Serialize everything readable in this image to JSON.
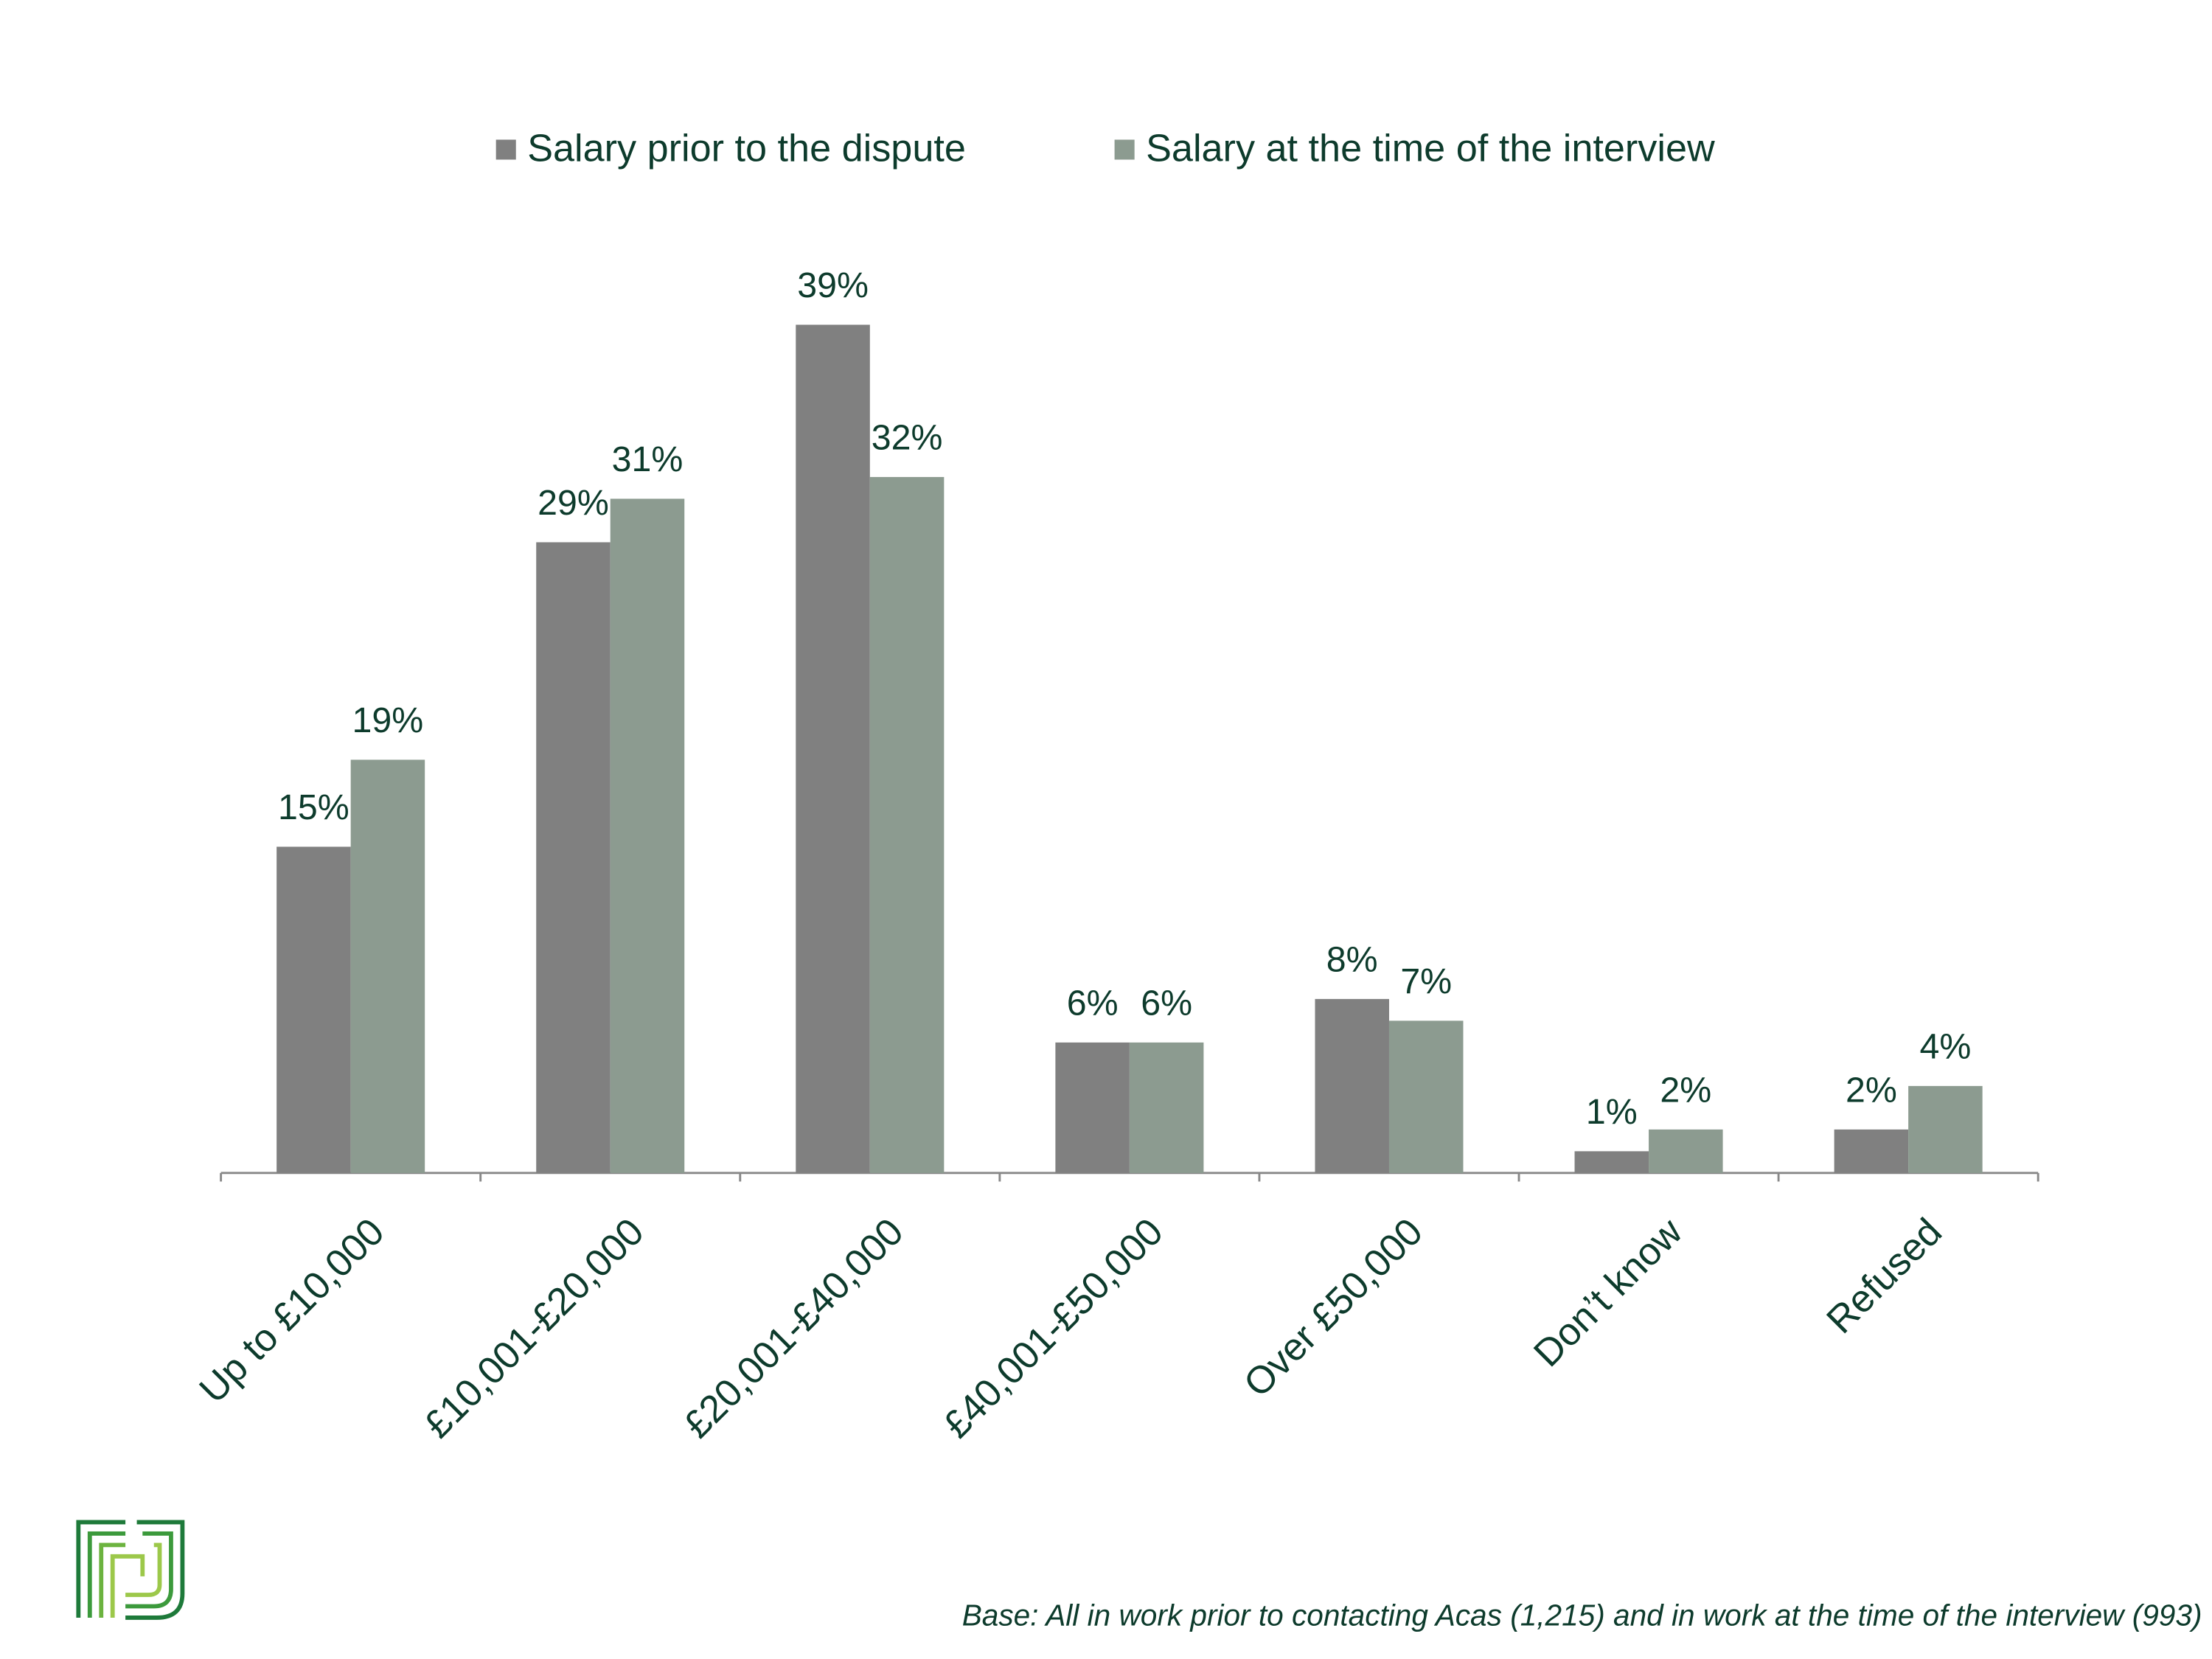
{
  "chart_data": {
    "type": "bar",
    "categories": [
      "Up to £10,000",
      "£10,001-£20,000",
      "£20,001-£40,000",
      "£40,001-£50,000",
      "Over £50,000",
      "Don’t know",
      "Refused"
    ],
    "series": [
      {
        "name": "Salary prior to the dispute",
        "color": "#808080",
        "values": [
          15,
          29,
          39,
          6,
          8,
          1,
          2
        ],
        "value_labels": [
          "15%",
          "29%",
          "39%",
          "6%",
          "8%",
          "1%",
          "2%"
        ]
      },
      {
        "name": "Salary at the time of the interview",
        "color": "#8c9b90",
        "values": [
          19,
          31,
          32,
          6,
          7,
          2,
          4
        ],
        "value_labels": [
          "19%",
          "31%",
          "32%",
          "6%",
          "7%",
          "2%",
          "4%"
        ]
      }
    ],
    "legend": "top",
    "footnote": "Base: All in work prior to contacting Acas (1,215) and in work at the time of the interview (993)"
  }
}
